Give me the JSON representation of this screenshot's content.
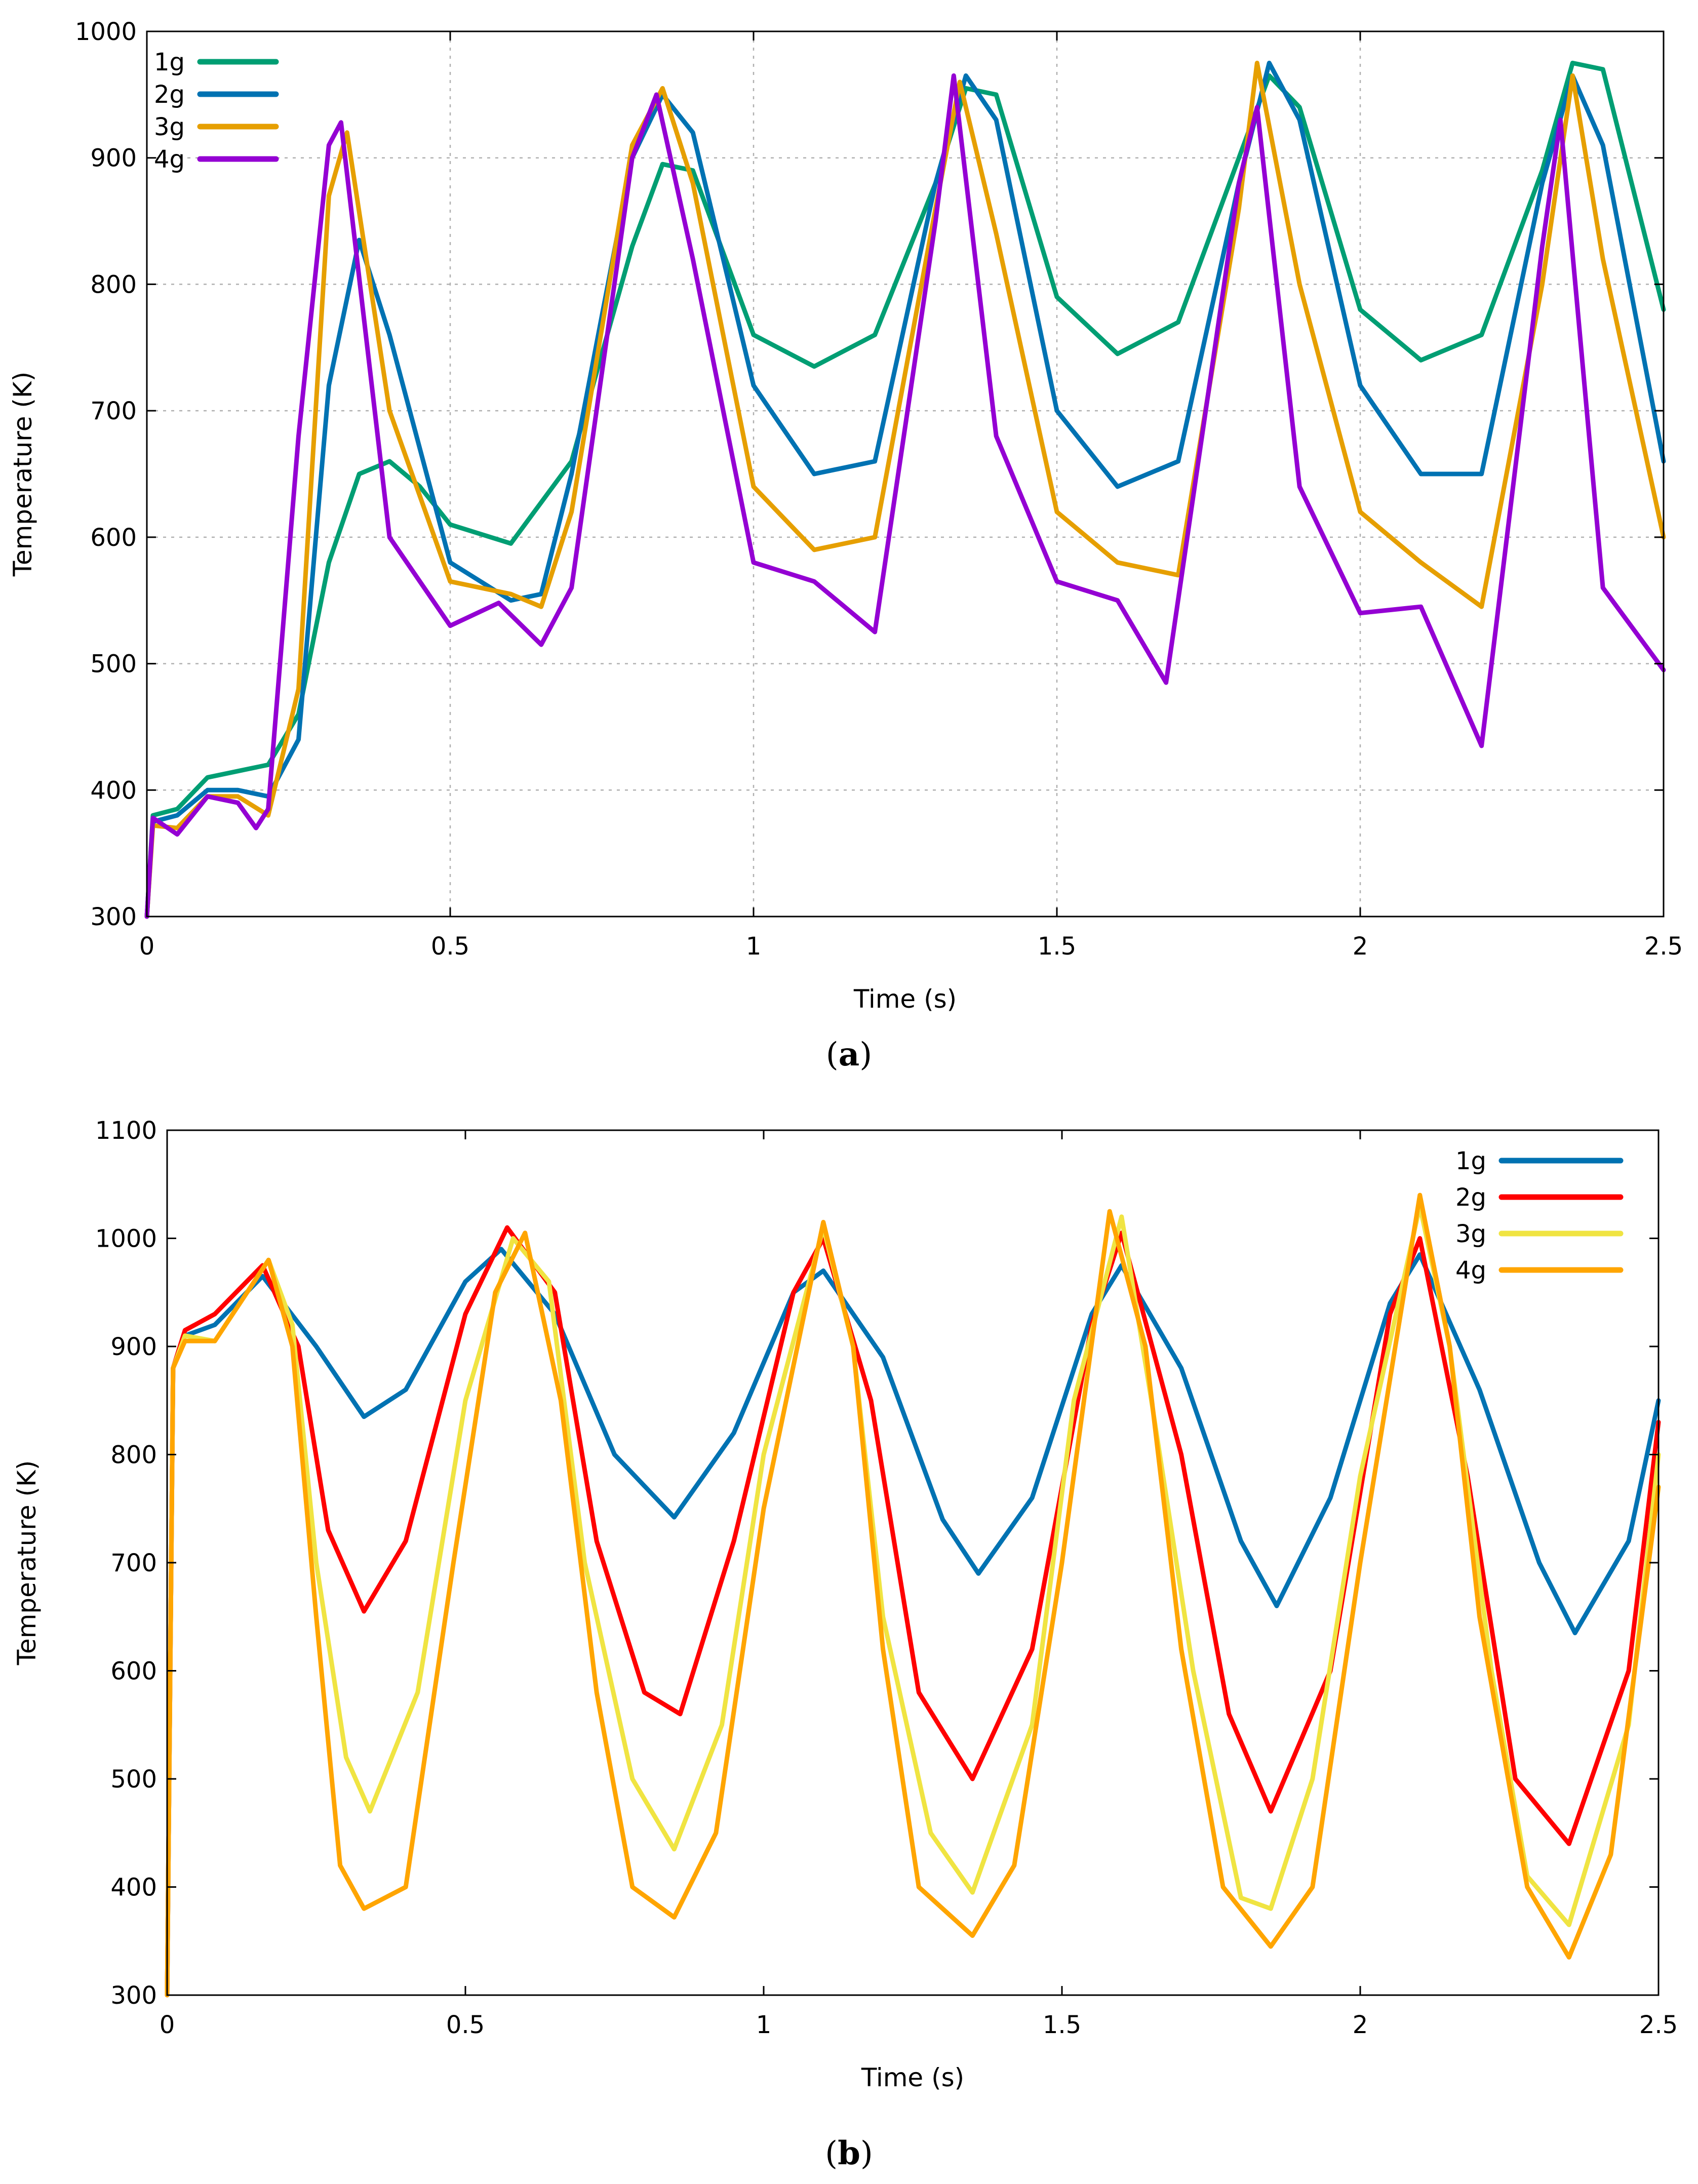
{
  "chart_data": [
    {
      "id": "a",
      "type": "line",
      "caption_open": "(",
      "caption_letter": "a",
      "caption_close": ")",
      "xlabel": "Time (s)",
      "ylabel": "Temperature (K)",
      "xlim": [
        0,
        2.5
      ],
      "ylim": [
        300,
        1000
      ],
      "xticks": [
        0,
        0.5,
        1,
        1.5,
        2,
        2.5
      ],
      "xtick_labels": [
        "0",
        "0.5",
        "1",
        "1.5",
        "2",
        "2.5"
      ],
      "yticks": [
        300,
        400,
        500,
        600,
        700,
        800,
        900,
        1000
      ],
      "ytick_labels": [
        "300",
        "400",
        "500",
        "600",
        "700",
        "800",
        "900",
        "1000"
      ],
      "grid": true,
      "legend_position": "top-left",
      "series": [
        {
          "name": "1g",
          "color": "#009e73",
          "x": [
            0,
            0.01,
            0.05,
            0.1,
            0.15,
            0.2,
            0.25,
            0.3,
            0.35,
            0.4,
            0.45,
            0.5,
            0.6,
            0.7,
            0.8,
            0.85,
            0.9,
            1.0,
            1.1,
            1.2,
            1.3,
            1.35,
            1.4,
            1.5,
            1.6,
            1.7,
            1.8,
            1.85,
            1.9,
            2.0,
            2.1,
            2.2,
            2.3,
            2.35,
            2.4,
            2.5
          ],
          "y": [
            300,
            380,
            385,
            410,
            415,
            420,
            460,
            580,
            650,
            660,
            640,
            610,
            595,
            660,
            830,
            895,
            890,
            760,
            735,
            760,
            880,
            955,
            950,
            790,
            745,
            770,
            900,
            965,
            940,
            780,
            740,
            760,
            890,
            975,
            970,
            780
          ]
        },
        {
          "name": "2g",
          "color": "#0072b2",
          "x": [
            0,
            0.01,
            0.05,
            0.1,
            0.15,
            0.2,
            0.25,
            0.3,
            0.35,
            0.4,
            0.5,
            0.6,
            0.65,
            0.7,
            0.8,
            0.85,
            0.9,
            1.0,
            1.1,
            1.2,
            1.3,
            1.35,
            1.4,
            1.5,
            1.6,
            1.7,
            1.8,
            1.85,
            1.9,
            2.0,
            2.1,
            2.2,
            2.3,
            2.35,
            2.4,
            2.5
          ],
          "y": [
            300,
            375,
            380,
            400,
            400,
            395,
            440,
            720,
            835,
            760,
            580,
            550,
            555,
            650,
            900,
            950,
            920,
            720,
            650,
            660,
            880,
            965,
            930,
            700,
            640,
            660,
            880,
            975,
            930,
            720,
            650,
            650,
            880,
            965,
            910,
            660
          ]
        },
        {
          "name": "3g",
          "color": "#e69f00",
          "x": [
            0,
            0.01,
            0.05,
            0.1,
            0.15,
            0.2,
            0.25,
            0.3,
            0.33,
            0.4,
            0.5,
            0.6,
            0.65,
            0.7,
            0.8,
            0.85,
            0.9,
            1.0,
            1.1,
            1.2,
            1.3,
            1.34,
            1.4,
            1.5,
            1.6,
            1.7,
            1.8,
            1.83,
            1.9,
            2.0,
            2.1,
            2.2,
            2.3,
            2.35,
            2.4,
            2.5
          ],
          "y": [
            300,
            372,
            370,
            395,
            395,
            380,
            480,
            870,
            920,
            700,
            565,
            555,
            545,
            620,
            910,
            955,
            880,
            640,
            590,
            600,
            860,
            960,
            840,
            620,
            580,
            570,
            860,
            975,
            800,
            620,
            580,
            545,
            800,
            965,
            820,
            600
          ]
        },
        {
          "name": "4g",
          "color": "#9400d3",
          "x": [
            0,
            0.01,
            0.05,
            0.1,
            0.15,
            0.18,
            0.2,
            0.25,
            0.3,
            0.32,
            0.4,
            0.5,
            0.58,
            0.65,
            0.7,
            0.8,
            0.84,
            0.9,
            1.0,
            1.1,
            1.2,
            1.3,
            1.33,
            1.4,
            1.5,
            1.6,
            1.68,
            1.8,
            1.83,
            1.9,
            2.0,
            2.1,
            2.2,
            2.3,
            2.33,
            2.4,
            2.5
          ],
          "y": [
            300,
            378,
            365,
            395,
            390,
            370,
            385,
            680,
            910,
            928,
            600,
            530,
            548,
            515,
            560,
            900,
            950,
            820,
            580,
            565,
            525,
            850,
            965,
            680,
            565,
            550,
            485,
            880,
            940,
            640,
            540,
            545,
            435,
            830,
            930,
            560,
            495
          ]
        }
      ]
    },
    {
      "id": "b",
      "type": "line",
      "caption_open": "(",
      "caption_letter": "b",
      "caption_close": ")",
      "xlabel": "Time (s)",
      "ylabel": "Temperature (K)",
      "xlim": [
        0,
        2.5
      ],
      "ylim": [
        300,
        1100
      ],
      "xticks": [
        0,
        0.5,
        1,
        1.5,
        2,
        2.5
      ],
      "xtick_labels": [
        "0",
        "0.5",
        "1",
        "1.5",
        "2",
        "2.5"
      ],
      "yticks": [
        300,
        400,
        500,
        600,
        700,
        800,
        900,
        1000,
        1100
      ],
      "ytick_labels": [
        "300",
        "400",
        "500",
        "600",
        "700",
        "800",
        "900",
        "1000",
        "1100"
      ],
      "grid": false,
      "legend_position": "top-right",
      "series": [
        {
          "name": "1g",
          "color": "#0072b2",
          "x": [
            0,
            0.01,
            0.03,
            0.08,
            0.16,
            0.25,
            0.33,
            0.4,
            0.5,
            0.56,
            0.65,
            0.75,
            0.85,
            0.95,
            1.05,
            1.1,
            1.2,
            1.3,
            1.36,
            1.45,
            1.55,
            1.6,
            1.7,
            1.8,
            1.86,
            1.95,
            2.05,
            2.1,
            2.2,
            2.3,
            2.36,
            2.45,
            2.5
          ],
          "y": [
            300,
            880,
            910,
            920,
            965,
            900,
            835,
            860,
            960,
            990,
            930,
            800,
            742,
            820,
            950,
            970,
            890,
            740,
            690,
            760,
            930,
            975,
            880,
            720,
            660,
            760,
            940,
            985,
            860,
            700,
            635,
            720,
            850
          ]
        },
        {
          "name": "2g",
          "color": "#ff0000",
          "x": [
            0,
            0.01,
            0.03,
            0.08,
            0.16,
            0.22,
            0.27,
            0.33,
            0.4,
            0.5,
            0.57,
            0.65,
            0.72,
            0.8,
            0.86,
            0.95,
            1.05,
            1.1,
            1.18,
            1.26,
            1.35,
            1.45,
            1.55,
            1.6,
            1.7,
            1.78,
            1.85,
            1.95,
            2.05,
            2.1,
            2.18,
            2.26,
            2.35,
            2.45,
            2.5
          ],
          "y": [
            300,
            880,
            915,
            930,
            975,
            900,
            730,
            655,
            720,
            930,
            1010,
            950,
            720,
            580,
            560,
            720,
            950,
            1000,
            850,
            580,
            500,
            620,
            920,
            1005,
            800,
            560,
            470,
            600,
            930,
            1000,
            780,
            500,
            440,
            600,
            830
          ]
        },
        {
          "name": "3g",
          "color": "#f0e442",
          "x": [
            0,
            0.01,
            0.03,
            0.08,
            0.17,
            0.21,
            0.25,
            0.3,
            0.34,
            0.42,
            0.5,
            0.58,
            0.64,
            0.7,
            0.78,
            0.85,
            0.93,
            1.0,
            1.1,
            1.15,
            1.2,
            1.28,
            1.35,
            1.45,
            1.52,
            1.6,
            1.65,
            1.72,
            1.8,
            1.85,
            1.92,
            2.0,
            2.1,
            2.15,
            2.22,
            2.28,
            2.35,
            2.45,
            2.5
          ],
          "y": [
            300,
            880,
            910,
            905,
            980,
            920,
            700,
            520,
            470,
            580,
            850,
            1000,
            960,
            700,
            500,
            435,
            550,
            800,
            1010,
            900,
            650,
            450,
            395,
            550,
            850,
            1020,
            850,
            600,
            390,
            380,
            500,
            780,
            1030,
            900,
            600,
            410,
            365,
            550,
            800
          ]
        },
        {
          "name": "4g",
          "color": "#ffa500",
          "x": [
            0,
            0.01,
            0.03,
            0.08,
            0.17,
            0.21,
            0.25,
            0.29,
            0.33,
            0.4,
            0.48,
            0.55,
            0.6,
            0.66,
            0.72,
            0.78,
            0.85,
            0.92,
            1.0,
            1.1,
            1.15,
            1.2,
            1.26,
            1.35,
            1.42,
            1.5,
            1.58,
            1.64,
            1.7,
            1.77,
            1.85,
            1.92,
            2.0,
            2.1,
            2.15,
            2.2,
            2.28,
            2.35,
            2.42,
            2.5
          ],
          "y": [
            300,
            880,
            905,
            905,
            980,
            900,
            650,
            420,
            380,
            400,
            700,
            950,
            1005,
            850,
            580,
            400,
            372,
            450,
            750,
            1015,
            900,
            620,
            400,
            355,
            420,
            700,
            1025,
            900,
            620,
            400,
            345,
            400,
            700,
            1040,
            900,
            650,
            400,
            335,
            430,
            770
          ]
        }
      ]
    }
  ]
}
